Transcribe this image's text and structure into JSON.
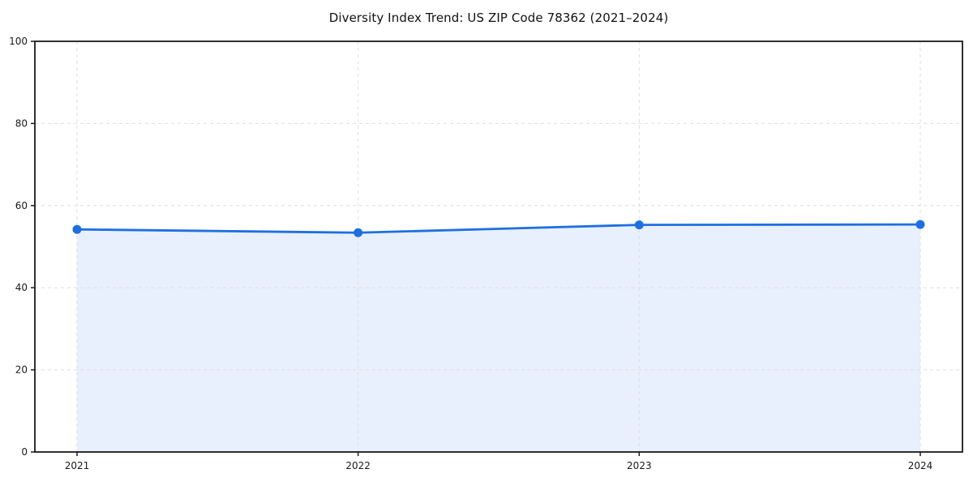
{
  "page": {
    "background": "#ffffff"
  },
  "chart_data": {
    "type": "area",
    "title": "Diversity Index Trend: US ZIP Code 78362 (2021–2024)",
    "categories": [
      "2021",
      "2022",
      "2023",
      "2024"
    ],
    "series": [
      {
        "name": "Diversity Index",
        "values": [
          54.2,
          53.4,
          55.3,
          55.4
        ]
      }
    ],
    "xlabel": "",
    "ylabel": "",
    "ylim": [
      0,
      100
    ],
    "yticks": [
      0,
      20,
      40,
      60,
      80,
      100
    ],
    "grid": "dashed-both-axes",
    "legend": "none",
    "colors": {
      "line": "#1f6fe0",
      "marker": "#1f6fe0",
      "area_fill": "#e8f0fd",
      "gridline": "#dedede",
      "axis": "#1a1a1a",
      "text": "#111111"
    }
  }
}
